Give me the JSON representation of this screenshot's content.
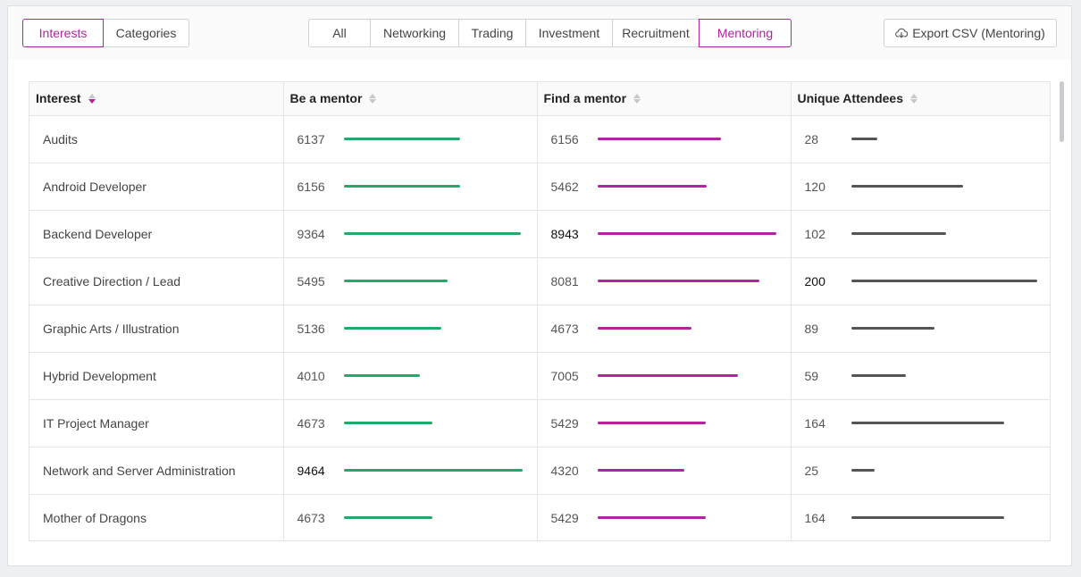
{
  "view_tabs": [
    {
      "label": "Interests",
      "active": true
    },
    {
      "label": "Categories",
      "active": false
    }
  ],
  "filter_tabs": [
    {
      "label": "All",
      "active": false
    },
    {
      "label": "Networking",
      "active": false
    },
    {
      "label": "Trading",
      "active": false
    },
    {
      "label": "Investment",
      "active": false
    },
    {
      "label": "Recruitment",
      "active": false
    },
    {
      "label": "Mentoring",
      "active": true
    }
  ],
  "export": {
    "label": "Export CSV (Mentoring)",
    "icon": "cloud-download-icon"
  },
  "table": {
    "columns": [
      {
        "label": "Interest",
        "sort": "desc"
      },
      {
        "label": "Be a mentor",
        "sort": "none"
      },
      {
        "label": "Find a mentor",
        "sort": "none"
      },
      {
        "label": "Unique Attendees",
        "sort": "none"
      }
    ],
    "max": {
      "mentor": 9464,
      "find": 8943,
      "unique": 200
    },
    "rows": [
      {
        "interest": "Audits",
        "mentor": 6137,
        "find": 6156,
        "unique": 28
      },
      {
        "interest": "Android Developer",
        "mentor": 6156,
        "find": 5462,
        "unique": 120
      },
      {
        "interest": "Backend Developer",
        "mentor": 9364,
        "find": 8943,
        "unique": 102
      },
      {
        "interest": "Creative Direction / Lead",
        "mentor": 5495,
        "find": 8081,
        "unique": 200
      },
      {
        "interest": "Graphic Arts / Illustration",
        "mentor": 5136,
        "find": 4673,
        "unique": 89
      },
      {
        "interest": "Hybrid Development",
        "mentor": 4010,
        "find": 7005,
        "unique": 59
      },
      {
        "interest": "IT Project Manager",
        "mentor": 4673,
        "find": 5429,
        "unique": 164
      },
      {
        "interest": "Network and Server Administration",
        "mentor": 9464,
        "find": 4320,
        "unique": 25
      },
      {
        "interest": "Mother of Dragons",
        "mentor": 4673,
        "find": 5429,
        "unique": 164
      }
    ]
  },
  "colors": {
    "accent": "#b3239f",
    "mentor_bar": "#22a96b",
    "find_bar": "#b3239f",
    "unique_bar": "#555555"
  }
}
